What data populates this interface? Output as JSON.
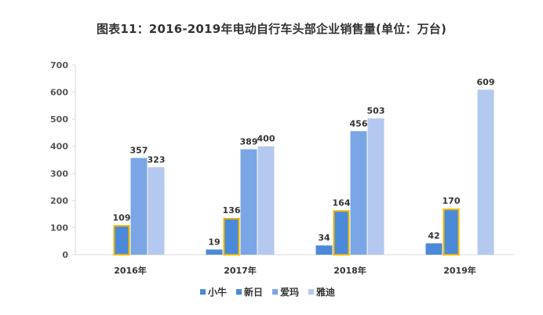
{
  "chart_data": {
    "type": "bar",
    "title": "图表11：2016-2019年电动自行车头部企业销售量(单位：万台)",
    "xlabel": "",
    "ylabel": "",
    "ylim": [
      0,
      700
    ],
    "yticks": [
      0,
      100,
      200,
      300,
      400,
      500,
      600,
      700
    ],
    "categories": [
      "2016年",
      "2017年",
      "2018年",
      "2019年"
    ],
    "series": [
      {
        "name": "小牛",
        "color": "#4a8ad8",
        "values": [
          null,
          19,
          34,
          42
        ]
      },
      {
        "name": "新日",
        "color": "#4a8ad8",
        "border": "#f0b400",
        "values": [
          109,
          136,
          164,
          170
        ]
      },
      {
        "name": "爱玛",
        "color": "#7aa6e6",
        "values": [
          357,
          389,
          456,
          null
        ]
      },
      {
        "name": "雅迪",
        "color": "#b4c8f0",
        "values": [
          323,
          400,
          503,
          609
        ]
      }
    ],
    "legend_position": "bottom"
  }
}
